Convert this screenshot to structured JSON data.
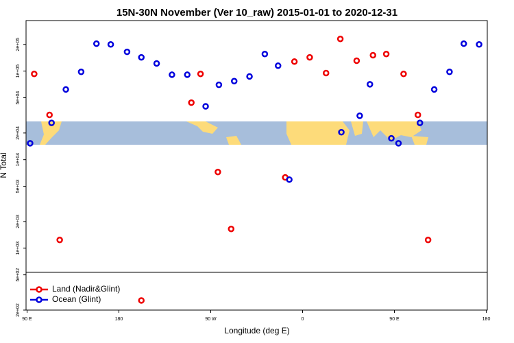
{
  "chart_data": {
    "type": "scatter",
    "title": "15N-30N November (Ver 10_raw)   2015-01-01 to 2020-12-31",
    "x_label": "Longitude (deg E)",
    "y_label": "N Total",
    "log_y": true,
    "xlim": [
      89,
      541
    ],
    "ylim": [
      200,
      372000
    ],
    "xticks": [
      {
        "value": 90,
        "label": "90 E"
      },
      180,
      {
        "value": 270,
        "label": "90 W"
      },
      {
        "value": 360,
        "label": "0"
      },
      {
        "value": 450,
        "label": "90 E"
      },
      {
        "value": 540,
        "label": "180"
      }
    ],
    "yticks": [
      {
        "value": 200000,
        "label": "2e+05"
      },
      {
        "value": 100000,
        "label": "1e+05"
      },
      {
        "value": 50000,
        "label": "5e+04"
      },
      {
        "value": 20000,
        "label": "2e+04"
      },
      {
        "value": 10000,
        "label": "1e+04"
      },
      {
        "value": 5000,
        "label": "5e+03"
      },
      {
        "value": 2000,
        "label": "2e+03"
      },
      {
        "value": 1000,
        "label": "1e+03"
      },
      {
        "value": 500,
        "label": "5e+02"
      },
      {
        "value": 200,
        "label": "2e+02"
      }
    ],
    "legend": "bottom-left",
    "series": [
      {
        "name": "Land (Nadir&Glint)",
        "color": "#ee0000",
        "x": [
          97,
          112,
          122,
          202,
          251,
          260,
          277,
          290,
          343,
          352,
          367,
          383,
          397,
          413,
          429,
          442,
          459,
          473,
          483
        ],
        "values": [
          93000,
          32000,
          1240,
          257,
          44000,
          93000,
          7250,
          1650,
          6300,
          128000,
          143000,
          95000,
          231000,
          131000,
          151000,
          156000,
          93000,
          32000,
          1240
        ]
      },
      {
        "name": "Ocean (Glint)",
        "color": "#0000dd",
        "x": [
          93,
          114,
          128,
          143,
          158,
          172,
          188,
          202,
          217,
          232,
          247,
          265,
          278,
          293,
          308,
          323,
          336,
          347,
          398,
          416,
          426,
          447,
          454,
          475,
          489,
          504,
          518,
          533
        ],
        "values": [
          15300,
          26000,
          62000,
          98000,
          204000,
          200000,
          165000,
          143000,
          122000,
          91000,
          91000,
          40000,
          70000,
          77000,
          87000,
          156000,
          115000,
          5950,
          20400,
          31300,
          71000,
          17400,
          15300,
          26000,
          62000,
          98000,
          204000,
          200000
        ]
      }
    ]
  }
}
